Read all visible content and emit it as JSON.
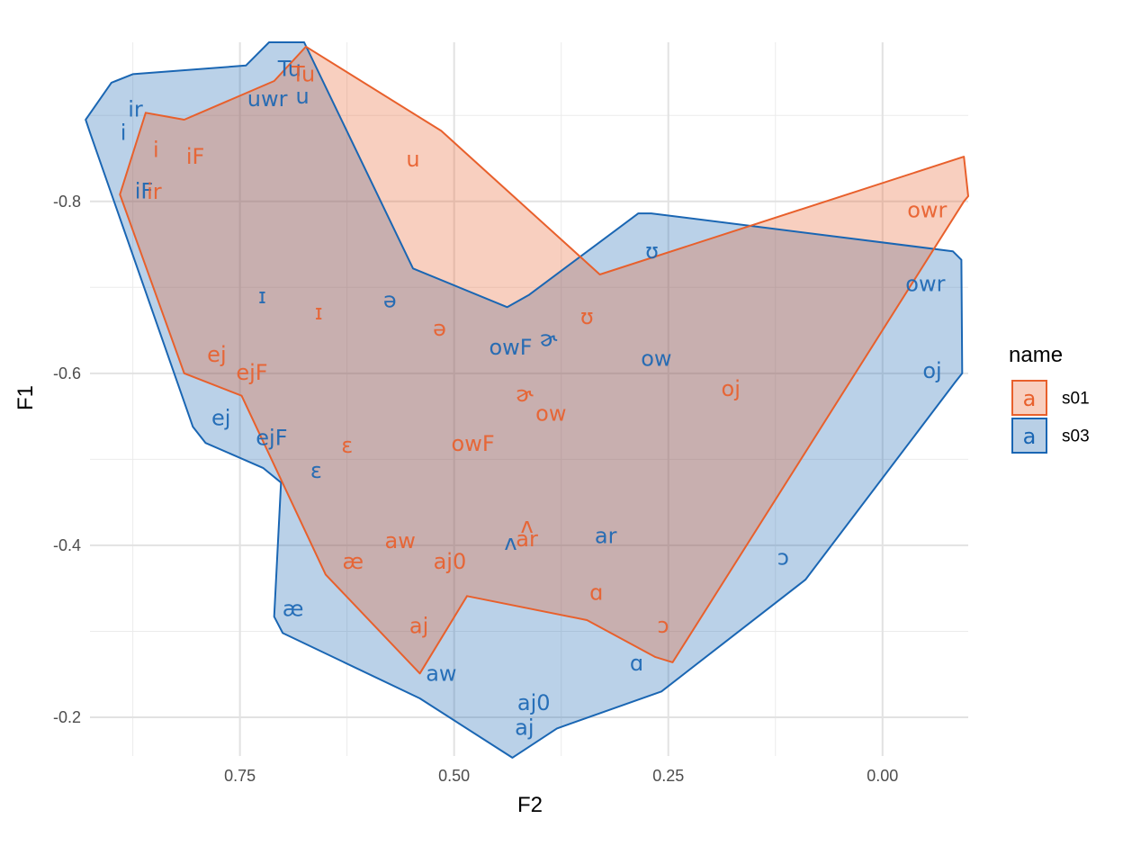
{
  "chart_data": {
    "type": "scatter",
    "title": "",
    "xlabel": "F2",
    "ylabel": "F1",
    "x_reversed": true,
    "y_reversed": true,
    "xlim": [
      0.925,
      -0.1
    ],
    "ylim": [
      -0.985,
      -0.155
    ],
    "xticks": [
      {
        "value": 0.75,
        "label": "0.75"
      },
      {
        "value": 0.5,
        "label": "0.50"
      },
      {
        "value": 0.25,
        "label": "0.25"
      },
      {
        "value": 0.0,
        "label": "0.00"
      }
    ],
    "yticks": [
      {
        "value": -0.8,
        "label": "-0.8"
      },
      {
        "value": -0.6,
        "label": "-0.6"
      },
      {
        "value": -0.4,
        "label": "-0.4"
      },
      {
        "value": -0.2,
        "label": "-0.2"
      }
    ],
    "grid": true,
    "legend": {
      "title": "name",
      "position": "right",
      "key_glyph": "a",
      "entries": [
        {
          "label": "s01",
          "color": "#E8602C",
          "fill": "#F8CFBF"
        },
        {
          "label": "s03",
          "color": "#1A66B3",
          "fill": "#B8CFE6"
        }
      ]
    },
    "series": [
      {
        "name": "s01",
        "color": "#E8602C",
        "fill": "#E8602C",
        "fill_opacity": 0.3,
        "hull": [
          [
            0.673,
            -0.98
          ],
          [
            0.515,
            -0.882
          ],
          [
            0.33,
            -0.715
          ],
          [
            -0.095,
            -0.852
          ],
          [
            -0.1,
            -0.806
          ],
          [
            -0.095,
            -0.8
          ],
          [
            0.245,
            -0.264
          ],
          [
            0.265,
            -0.27
          ],
          [
            0.345,
            -0.313
          ],
          [
            0.485,
            -0.341
          ],
          [
            0.54,
            -0.251
          ],
          [
            0.65,
            -0.366
          ],
          [
            0.748,
            -0.574
          ],
          [
            0.815,
            -0.6
          ],
          [
            0.89,
            -0.808
          ],
          [
            0.86,
            -0.903
          ],
          [
            0.815,
            -0.895
          ],
          [
            0.71,
            -0.94
          ]
        ],
        "points": [
          {
            "label": "Tu",
            "x": 0.676,
            "y": -0.948
          },
          {
            "label": "u",
            "x": 0.548,
            "y": -0.849
          },
          {
            "label": "i",
            "x": 0.848,
            "y": -0.86
          },
          {
            "label": "iF",
            "x": 0.802,
            "y": -0.852
          },
          {
            "label": "ir",
            "x": 0.85,
            "y": -0.811
          },
          {
            "label": "owr",
            "x": -0.052,
            "y": -0.79
          },
          {
            "label": "ɪ",
            "x": 0.658,
            "y": -0.671
          },
          {
            "label": "ə",
            "x": 0.517,
            "y": -0.652
          },
          {
            "label": "ʊ",
            "x": 0.345,
            "y": -0.666
          },
          {
            "label": "ej",
            "x": 0.777,
            "y": -0.622
          },
          {
            "label": "ejF",
            "x": 0.736,
            "y": -0.601
          },
          {
            "label": "oj",
            "x": 0.177,
            "y": -0.582
          },
          {
            "label": "ɚ",
            "x": 0.418,
            "y": -0.576
          },
          {
            "label": "ow",
            "x": 0.387,
            "y": -0.553
          },
          {
            "label": "ɛ",
            "x": 0.625,
            "y": -0.516
          },
          {
            "label": "owF",
            "x": 0.478,
            "y": -0.518
          },
          {
            "label": "ʌ",
            "x": 0.415,
            "y": -0.423
          },
          {
            "label": "aw",
            "x": 0.563,
            "y": -0.405
          },
          {
            "label": "ar",
            "x": 0.415,
            "y": -0.407
          },
          {
            "label": "æ",
            "x": 0.618,
            "y": -0.381
          },
          {
            "label": "aj0",
            "x": 0.505,
            "y": -0.381
          },
          {
            "label": "ɑ",
            "x": 0.334,
            "y": -0.345
          },
          {
            "label": "aj",
            "x": 0.541,
            "y": -0.306
          },
          {
            "label": "ɔ",
            "x": 0.256,
            "y": -0.307
          }
        ]
      },
      {
        "name": "s03",
        "color": "#1A66B3",
        "fill": "#1A66B3",
        "fill_opacity": 0.3,
        "hull": [
          [
            0.875,
            -0.948
          ],
          [
            0.743,
            -0.958
          ],
          [
            0.716,
            -0.985
          ],
          [
            0.675,
            -0.985
          ],
          [
            0.548,
            -0.722
          ],
          [
            0.438,
            -0.677
          ],
          [
            0.413,
            -0.691
          ],
          [
            0.285,
            -0.786
          ],
          [
            0.27,
            -0.786
          ],
          [
            -0.082,
            -0.742
          ],
          [
            -0.092,
            -0.732
          ],
          [
            -0.093,
            -0.6
          ],
          [
            -0.085,
            -0.59
          ],
          [
            0.09,
            -0.36
          ],
          [
            0.258,
            -0.23
          ],
          [
            0.38,
            -0.187
          ],
          [
            0.432,
            -0.153
          ],
          [
            0.54,
            -0.222
          ],
          [
            0.7,
            -0.298
          ],
          [
            0.71,
            -0.317
          ],
          [
            0.702,
            -0.473
          ],
          [
            0.723,
            -0.49
          ],
          [
            0.79,
            -0.519
          ],
          [
            0.805,
            -0.538
          ],
          [
            0.925,
            -0.88
          ],
          [
            0.93,
            -0.895
          ],
          [
            0.9,
            -0.938
          ]
        ],
        "points": [
          {
            "label": "Tu",
            "x": 0.692,
            "y": -0.954
          },
          {
            "label": "u",
            "x": 0.677,
            "y": -0.922
          },
          {
            "label": "uwr",
            "x": 0.718,
            "y": -0.919
          },
          {
            "label": "ir",
            "x": 0.872,
            "y": -0.907
          },
          {
            "label": "i",
            "x": 0.886,
            "y": -0.88
          },
          {
            "label": "iF",
            "x": 0.862,
            "y": -0.812
          },
          {
            "label": "ʊ",
            "x": 0.269,
            "y": -0.742
          },
          {
            "label": "owr",
            "x": -0.05,
            "y": -0.704
          },
          {
            "label": "ɪ",
            "x": 0.724,
            "y": -0.69
          },
          {
            "label": "ə",
            "x": 0.575,
            "y": -0.685
          },
          {
            "label": "ɚ",
            "x": 0.39,
            "y": -0.64
          },
          {
            "label": "owF",
            "x": 0.434,
            "y": -0.63
          },
          {
            "label": "ow",
            "x": 0.264,
            "y": -0.617
          },
          {
            "label": "oj",
            "x": -0.058,
            "y": -0.603
          },
          {
            "label": "ej",
            "x": 0.772,
            "y": -0.548
          },
          {
            "label": "ejF",
            "x": 0.713,
            "y": -0.525
          },
          {
            "label": "ɛ",
            "x": 0.661,
            "y": -0.487
          },
          {
            "label": "ar",
            "x": 0.323,
            "y": -0.411
          },
          {
            "label": "ʌ",
            "x": 0.434,
            "y": -0.403
          },
          {
            "label": "ɔ",
            "x": 0.116,
            "y": -0.386
          },
          {
            "label": "æ",
            "x": 0.688,
            "y": -0.326
          },
          {
            "label": "ɑ",
            "x": 0.287,
            "y": -0.263
          },
          {
            "label": "aw",
            "x": 0.515,
            "y": -0.251
          },
          {
            "label": "aj0",
            "x": 0.407,
            "y": -0.217
          },
          {
            "label": "aj",
            "x": 0.418,
            "y": -0.188
          }
        ]
      }
    ]
  }
}
